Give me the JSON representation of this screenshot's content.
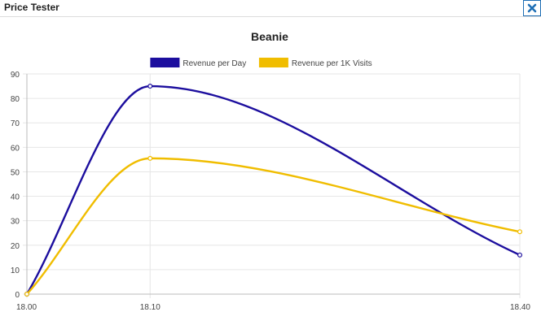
{
  "window": {
    "title": "Price Tester",
    "close_icon": "close-icon",
    "accent": "#1f6fb5"
  },
  "chart_data": {
    "type": "line",
    "title": "Beanie",
    "xlabel": "",
    "ylabel": "",
    "x": [
      18.0,
      18.1,
      18.4
    ],
    "x_labels": [
      "18.00",
      "18.10",
      "18.40"
    ],
    "ylim": [
      0,
      90
    ],
    "y_ticks": [
      "0",
      "10",
      "20",
      "30",
      "40",
      "50",
      "60",
      "70",
      "80",
      "90"
    ],
    "grid": true,
    "legend_position": "top",
    "series": [
      {
        "name": "Revenue per Day",
        "values": [
          0,
          85,
          16
        ],
        "color": "#1c0e9e"
      },
      {
        "name": "Revenue per 1K Visits",
        "values": [
          0,
          55.5,
          25.5
        ],
        "color": "#f0bd00"
      }
    ]
  }
}
